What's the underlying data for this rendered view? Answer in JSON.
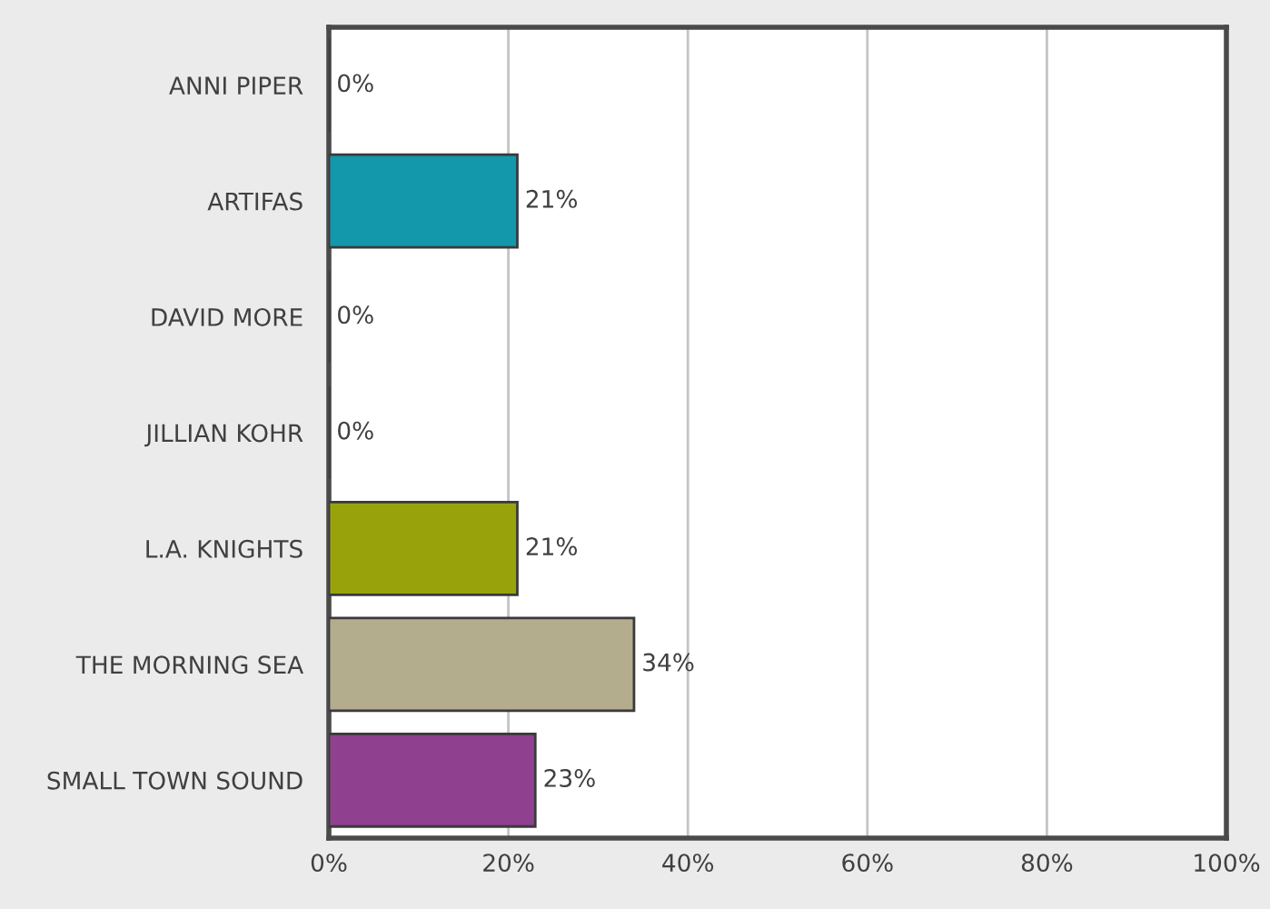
{
  "chart_data": {
    "type": "bar",
    "orientation": "horizontal",
    "categories": [
      "ANNI PIPER",
      "ARTIFAS",
      "DAVID MORE",
      "JILLIAN KOHR",
      "L.A. KNIGHTS",
      "THE MORNING SEA",
      "SMALL TOWN SOUND"
    ],
    "values": [
      0,
      21,
      0,
      0,
      21,
      34,
      23
    ],
    "colors": [
      null,
      "#1397ab",
      null,
      null,
      "#98a30c",
      "#b3ad8e",
      "#8f418f"
    ],
    "value_labels": [
      "0%",
      "21%",
      "0%",
      "0%",
      "21%",
      "34%",
      "23%"
    ],
    "xlim": [
      0,
      100
    ],
    "xticks": [
      {
        "value": 0,
        "label": "0%"
      },
      {
        "value": 20,
        "label": "20%"
      },
      {
        "value": 40,
        "label": "40%"
      },
      {
        "value": 60,
        "label": "60%"
      },
      {
        "value": 80,
        "label": "80%"
      },
      {
        "value": 100,
        "label": "100%"
      }
    ],
    "grid": "x",
    "legend": false
  }
}
